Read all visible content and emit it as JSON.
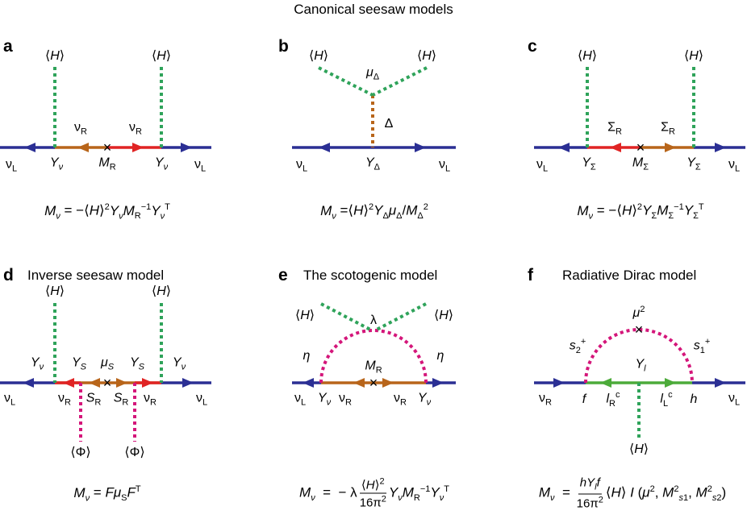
{
  "title": "Canonical seesaw models",
  "panels": {
    "a": {
      "letter": "a"
    },
    "b": {
      "letter": "b"
    },
    "c": {
      "letter": "c"
    },
    "d": {
      "letter": "d",
      "title": "Inverse seesaw model"
    },
    "e": {
      "letter": "e",
      "title": "The scotogenic model"
    },
    "f": {
      "letter": "f",
      "title": "Radiative Dirac model"
    }
  },
  "colors": {
    "fermion_line": "#2b2f94",
    "nuR": "#b8651a",
    "heavy_red": "#e02424",
    "higgs_dotted": "#2fa35a",
    "phi_dotted": "#d4167a",
    "triplet_dotted": "#b8651a",
    "green_fermion": "#4cab3a"
  }
}
